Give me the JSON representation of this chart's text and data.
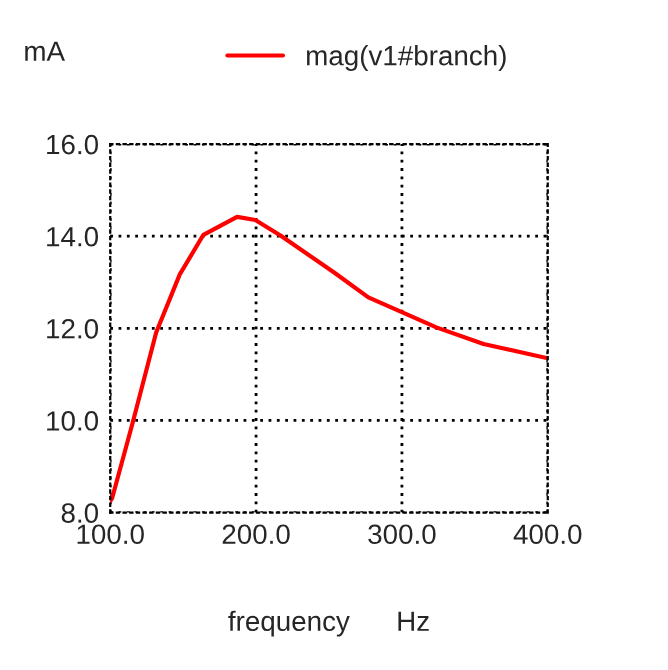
{
  "chart_data": {
    "type": "line",
    "ylabel": "mA",
    "xlabel": "frequency      Hz",
    "xlim": [
      100,
      400
    ],
    "ylim": [
      8,
      16
    ],
    "xticks": [
      {
        "value": 100,
        "label": "100.0"
      },
      {
        "value": 200,
        "label": "200.0"
      },
      {
        "value": 300,
        "label": "300.0"
      },
      {
        "value": 400,
        "label": "400.0"
      }
    ],
    "yticks": [
      {
        "value": 8,
        "label": "8.0"
      },
      {
        "value": 10,
        "label": "10.0"
      },
      {
        "value": 12,
        "label": "12.0"
      },
      {
        "value": 14,
        "label": "14.0"
      },
      {
        "value": 16,
        "label": "16.0"
      }
    ],
    "grid": true,
    "legend": "top",
    "series": [
      {
        "name": "mag(v1#branch)",
        "color": "#ff0000",
        "x": [
          100,
          101.4,
          115.3,
          131.5,
          147.7,
          163.9,
          187,
          199.5,
          217,
          254,
          277,
          298,
          323.6,
          356,
          400
        ],
        "values": [
          8.25,
          8.32,
          9.94,
          11.91,
          13.17,
          14.03,
          14.42,
          14.35,
          14.01,
          13.2,
          12.67,
          12.38,
          12.02,
          11.66,
          11.35
        ]
      }
    ]
  }
}
